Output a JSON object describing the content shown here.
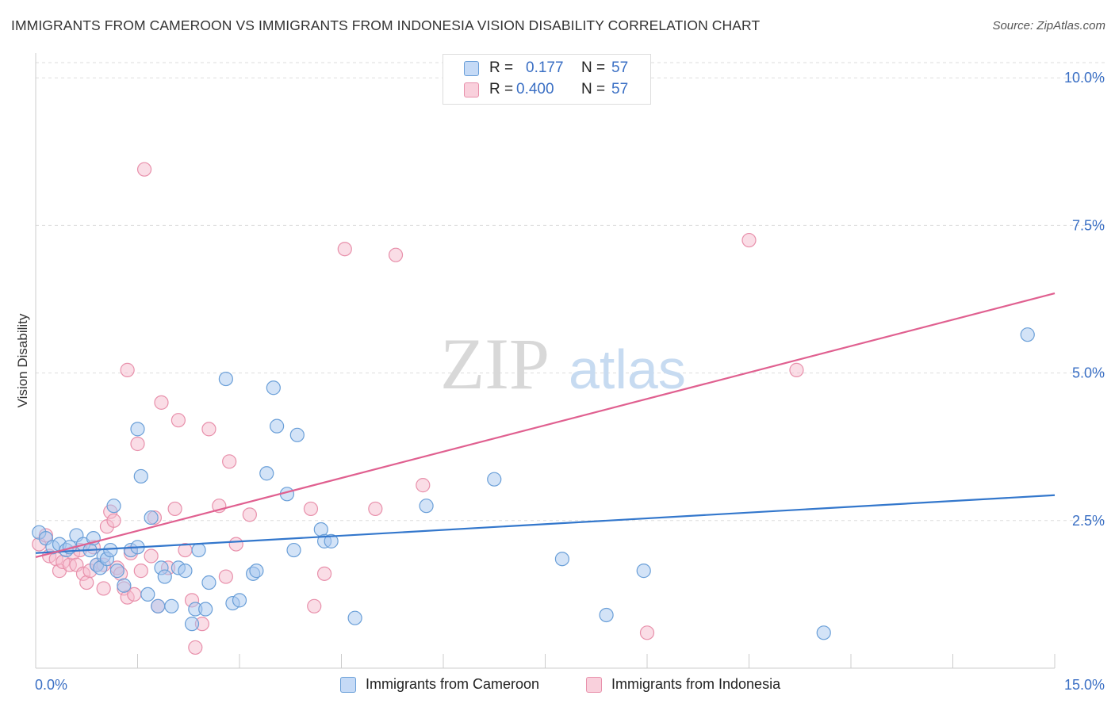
{
  "title": "IMMIGRANTS FROM CAMEROON VS IMMIGRANTS FROM INDONESIA VISION DISABILITY CORRELATION CHART",
  "source": "Source: ZipAtlas.com",
  "watermark": {
    "part1": "ZIP",
    "part2": "atlas"
  },
  "colors": {
    "blue_fill": "#a8c8f0",
    "blue_stroke": "#6a9fd8",
    "blue_line": "#3377cc",
    "pink_fill": "#f6bccd",
    "pink_stroke": "#e890ab",
    "pink_line": "#e06090",
    "value_text": "#3a6fc4",
    "grid": "#dddddd"
  },
  "legend": {
    "r_label": "R =",
    "n_label": "N =",
    "series": [
      {
        "r": "0.177",
        "n": "57"
      },
      {
        "r": "0.400",
        "n": "57"
      }
    ]
  },
  "chart_data": {
    "type": "scatter",
    "ylabel": "Vision Disability",
    "xlabel": "",
    "xlim": [
      0,
      15
    ],
    "ylim": [
      0,
      10.5
    ],
    "x_tick_labels": {
      "min": "0.0%",
      "max": "15.0%"
    },
    "y_ticks": [
      {
        "value": 2.5,
        "label": "2.5%"
      },
      {
        "value": 5.0,
        "label": "5.0%"
      },
      {
        "value": 7.5,
        "label": "7.5%"
      },
      {
        "value": 10.0,
        "label": "10.0%"
      }
    ],
    "series": [
      {
        "name": "Immigrants from Cameroon",
        "color": "blue",
        "trend": {
          "x": [
            0,
            15
          ],
          "y": [
            1.95,
            2.93
          ]
        },
        "points": [
          [
            0.05,
            2.3
          ],
          [
            0.15,
            2.2
          ],
          [
            0.25,
            2.05
          ],
          [
            0.35,
            2.1
          ],
          [
            0.45,
            2.0
          ],
          [
            0.5,
            2.05
          ],
          [
            0.6,
            2.25
          ],
          [
            0.7,
            2.1
          ],
          [
            0.8,
            2.0
          ],
          [
            0.85,
            2.2
          ],
          [
            0.9,
            1.75
          ],
          [
            0.95,
            1.7
          ],
          [
            1.0,
            1.9
          ],
          [
            1.05,
            1.85
          ],
          [
            1.1,
            2.0
          ],
          [
            1.15,
            2.75
          ],
          [
            1.2,
            1.65
          ],
          [
            1.3,
            1.4
          ],
          [
            1.4,
            2.0
          ],
          [
            1.5,
            2.05
          ],
          [
            1.5,
            4.05
          ],
          [
            1.55,
            3.25
          ],
          [
            1.65,
            1.25
          ],
          [
            1.7,
            2.55
          ],
          [
            1.8,
            1.05
          ],
          [
            1.85,
            1.7
          ],
          [
            1.9,
            1.55
          ],
          [
            2.0,
            1.05
          ],
          [
            2.1,
            1.7
          ],
          [
            2.2,
            1.65
          ],
          [
            2.3,
            0.75
          ],
          [
            2.35,
            1.0
          ],
          [
            2.4,
            2.0
          ],
          [
            2.5,
            1.0
          ],
          [
            2.55,
            1.45
          ],
          [
            2.8,
            4.9
          ],
          [
            2.9,
            1.1
          ],
          [
            3.0,
            1.15
          ],
          [
            3.2,
            1.6
          ],
          [
            3.25,
            1.65
          ],
          [
            3.4,
            3.3
          ],
          [
            3.5,
            4.75
          ],
          [
            3.55,
            4.1
          ],
          [
            3.7,
            2.95
          ],
          [
            3.8,
            2.0
          ],
          [
            3.85,
            3.95
          ],
          [
            4.2,
            2.35
          ],
          [
            4.25,
            2.15
          ],
          [
            4.35,
            2.15
          ],
          [
            4.7,
            0.85
          ],
          [
            5.75,
            2.75
          ],
          [
            6.75,
            3.2
          ],
          [
            7.75,
            1.85
          ],
          [
            8.4,
            0.9
          ],
          [
            8.95,
            1.65
          ],
          [
            11.6,
            0.6
          ],
          [
            14.6,
            5.65
          ]
        ]
      },
      {
        "name": "Immigrants from Indonesia",
        "color": "pink",
        "trend": {
          "x": [
            0,
            15
          ],
          "y": [
            1.88,
            6.35
          ]
        },
        "points": [
          [
            0.05,
            2.1
          ],
          [
            0.15,
            2.25
          ],
          [
            0.2,
            1.9
          ],
          [
            0.3,
            1.85
          ],
          [
            0.35,
            1.65
          ],
          [
            0.4,
            1.8
          ],
          [
            0.5,
            1.75
          ],
          [
            0.55,
            1.95
          ],
          [
            0.6,
            1.75
          ],
          [
            0.65,
            2.0
          ],
          [
            0.7,
            1.6
          ],
          [
            0.75,
            1.45
          ],
          [
            0.8,
            1.65
          ],
          [
            0.85,
            2.05
          ],
          [
            0.9,
            1.75
          ],
          [
            1.0,
            1.35
          ],
          [
            1.0,
            1.75
          ],
          [
            1.05,
            2.4
          ],
          [
            1.1,
            2.65
          ],
          [
            1.15,
            2.5
          ],
          [
            1.2,
            1.7
          ],
          [
            1.25,
            1.6
          ],
          [
            1.3,
            1.35
          ],
          [
            1.35,
            1.2
          ],
          [
            1.35,
            5.05
          ],
          [
            1.4,
            1.95
          ],
          [
            1.45,
            1.25
          ],
          [
            1.5,
            3.8
          ],
          [
            1.55,
            1.65
          ],
          [
            1.6,
            8.45
          ],
          [
            1.7,
            1.9
          ],
          [
            1.75,
            2.55
          ],
          [
            1.8,
            1.05
          ],
          [
            1.85,
            4.5
          ],
          [
            1.95,
            1.7
          ],
          [
            2.05,
            2.7
          ],
          [
            2.1,
            4.2
          ],
          [
            2.2,
            2.0
          ],
          [
            2.3,
            1.15
          ],
          [
            2.35,
            0.35
          ],
          [
            2.45,
            0.75
          ],
          [
            2.55,
            4.05
          ],
          [
            2.7,
            2.75
          ],
          [
            2.8,
            1.55
          ],
          [
            2.85,
            3.5
          ],
          [
            2.95,
            2.1
          ],
          [
            3.15,
            2.6
          ],
          [
            4.05,
            2.7
          ],
          [
            4.1,
            1.05
          ],
          [
            4.25,
            1.6
          ],
          [
            4.55,
            7.1
          ],
          [
            5.0,
            2.7
          ],
          [
            5.3,
            7.0
          ],
          [
            5.7,
            3.1
          ],
          [
            9.0,
            0.6
          ],
          [
            10.5,
            7.25
          ],
          [
            11.2,
            5.05
          ]
        ]
      }
    ]
  },
  "bottom_legend": [
    {
      "label": "Immigrants from Cameroon"
    },
    {
      "label": "Immigrants from Indonesia"
    }
  ]
}
